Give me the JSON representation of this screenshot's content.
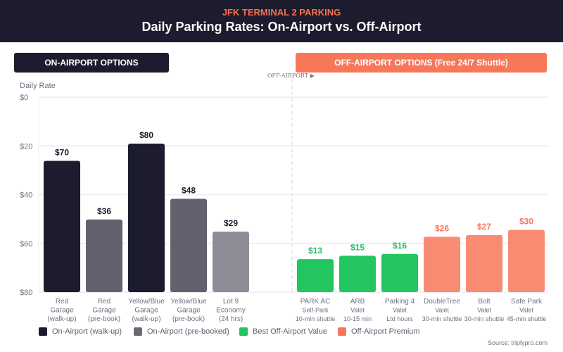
{
  "header": {
    "supertitle": "JFK TERMINAL 2 PARKING",
    "title": "Daily Parking Rates: On-Airport vs. Off-Airport"
  },
  "banners": {
    "on": "ON-AIRPORT OPTIONS",
    "off": "OFF-AIRPORT OPTIONS (Free 24/7 Shuttle)"
  },
  "divider_label": "OFF-AIRPORT ▶",
  "source": "Source: triplypro.com",
  "chart_data": {
    "type": "bar",
    "ylabel": "Daily Rate",
    "yticks": [
      "$0",
      "$20",
      "$40",
      "$60",
      "$80"
    ],
    "grid": true,
    "legend_placement": "bottom",
    "categories": [
      [
        "Red",
        "Garage",
        "(walk-up)"
      ],
      [
        "Red",
        "Garage",
        "(pre-book)"
      ],
      [
        "Yellow/Blue",
        "Garage",
        "(walk-up)"
      ],
      [
        "Yellow/Blue",
        "Garage",
        "(pre-book)"
      ],
      [
        "Lot 9",
        "Economy",
        "(24 hrs)"
      ],
      [
        "PARK AC",
        "Self-Park",
        "10-min shuttle"
      ],
      [
        "ARB",
        "Valet",
        "10-15 min"
      ],
      [
        "Parking 4",
        "Valet",
        "Ltd hours"
      ],
      [
        "DoubleTree",
        "Valet",
        "30-min shuttle"
      ],
      [
        "Bolt",
        "Valet",
        "30-min shuttle"
      ],
      [
        "Safe Park",
        "Valet",
        "45-min shuttle"
      ]
    ],
    "values": [
      70,
      36,
      80,
      48,
      29,
      13,
      15,
      16,
      26,
      27,
      30
    ],
    "labels": [
      "$70",
      "$36",
      "$80",
      "$48",
      "$29",
      "$13",
      "$15",
      "$16",
      "$26",
      "$27",
      "$30"
    ],
    "groups": [
      0,
      1,
      0,
      1,
      2,
      3,
      3,
      3,
      4,
      4,
      4
    ],
    "legend": [
      {
        "name": "On-Airport (walk-up)",
        "color": "#1c1c2e"
      },
      {
        "name": "On-Airport (pre-booked)",
        "color": "#6b6976"
      },
      {
        "name": "Best Off-Airport Value",
        "color": "#22c55e"
      },
      {
        "name": "Off-Airport Premium",
        "color": "#f7775a"
      }
    ],
    "colors": [
      "#1c1c2e",
      "#64616e",
      "#8e8c96",
      "#22c55e",
      "#f98b73"
    ],
    "label_colors": [
      "#1c1c2e",
      "#1c1c2e",
      "#1c1c2e",
      "#22c55e",
      "#f7775a"
    ]
  }
}
